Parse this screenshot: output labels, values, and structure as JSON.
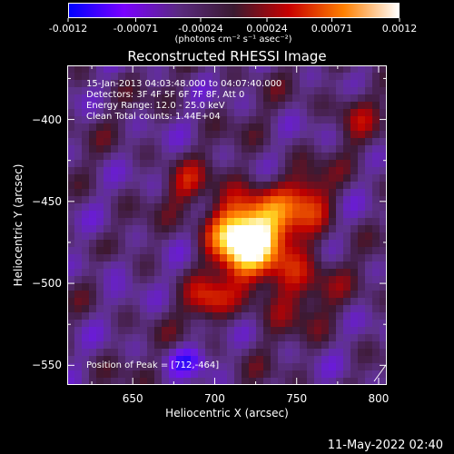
{
  "colorbar": {
    "tick_labels": [
      "-0.0012",
      "-0.00071",
      "-0.00024",
      "0.00024",
      "0.00071",
      "0.0012"
    ],
    "tick_values": [
      -0.0012,
      -0.00071,
      -0.00024,
      0.00024,
      0.00071,
      0.0012
    ],
    "unit_label": "(photons cm⁻² s⁻¹ asec⁻²)",
    "colors": [
      "#0000ff",
      "#7a00ff",
      "#5a2a80",
      "#3a1a30",
      "#c80000",
      "#ff8000",
      "#ffffff"
    ]
  },
  "title": "Reconstructed RHESSI Image",
  "info": {
    "time_range": "15-Jan-2013 04:03:48.000 to 04:07:40.000",
    "detectors": "Detectors: 3F 4F 5F 6F 7F 8F, Att 0",
    "energy": "Energy Range: 12.0 - 25.0 keV",
    "clean": "Clean     Total counts: 1.44E+04",
    "peak": "Position of Peak = [712,-464]"
  },
  "axes": {
    "x_title": "Heliocentric X (arcsec)",
    "y_title": "Heliocentric Y (arcsec)",
    "x_ticks": [
      {
        "value": 650,
        "label": "650"
      },
      {
        "value": 700,
        "label": "700"
      },
      {
        "value": 750,
        "label": "750"
      },
      {
        "value": 800,
        "label": "800"
      }
    ],
    "y_ticks": [
      {
        "value": -400,
        "label": "−400"
      },
      {
        "value": -450,
        "label": "−450"
      },
      {
        "value": -500,
        "label": "−500"
      },
      {
        "value": -550,
        "label": "−550"
      }
    ],
    "x_range": [
      610,
      805
    ],
    "y_range": [
      -367,
      -562
    ]
  },
  "datestamp": "11-May-2022 02:40"
}
